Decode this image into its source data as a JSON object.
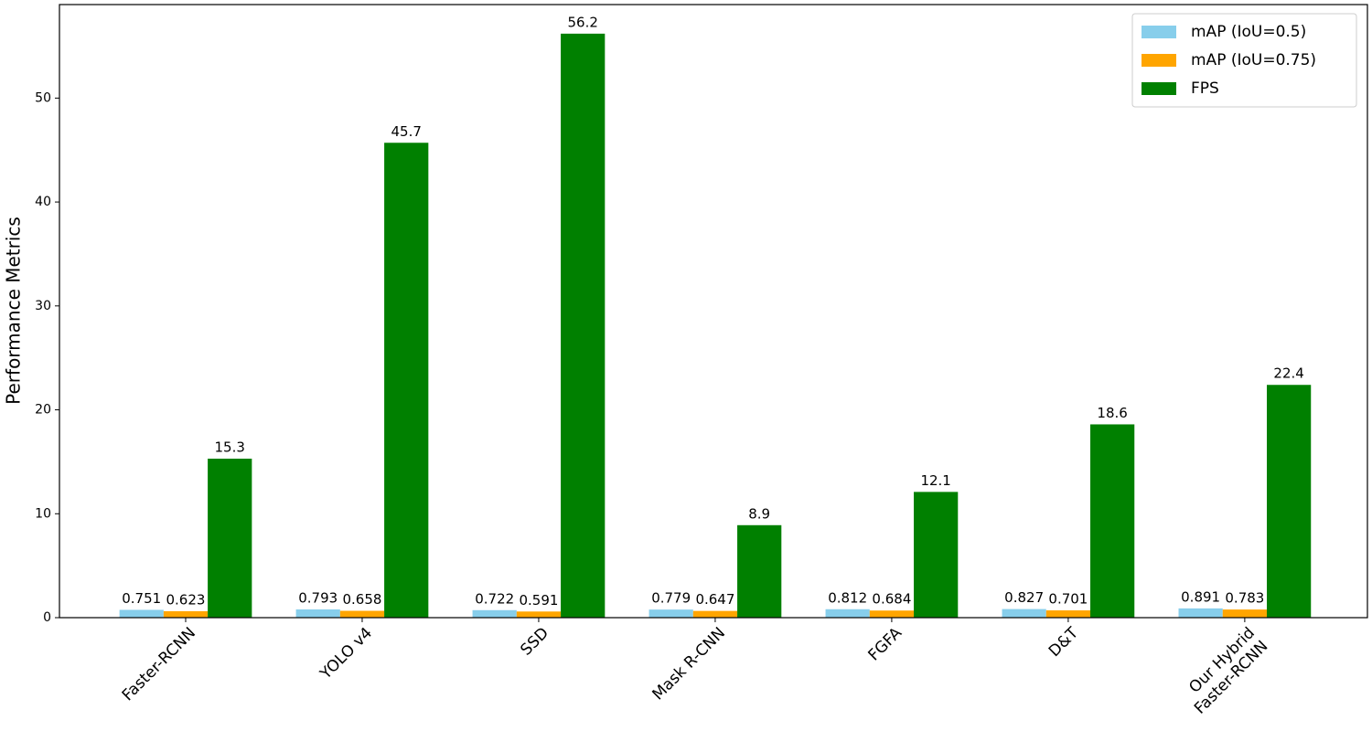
{
  "chart_data": {
    "type": "bar",
    "y_label": "Performance Metrics",
    "categories": [
      "Faster-RCNN",
      "YOLO v4",
      "SSD",
      "Mask R-CNN",
      "FGFA",
      "D&T",
      "Our Hybrid\nFaster-RCNN"
    ],
    "series": [
      {
        "name": "mAP (IoU=0.5)",
        "color": "#87ceeb",
        "values": [
          0.751,
          0.793,
          0.722,
          0.779,
          0.812,
          0.827,
          0.891
        ]
      },
      {
        "name": "mAP (IoU=0.75)",
        "color": "#ffa500",
        "values": [
          0.623,
          0.658,
          0.591,
          0.647,
          0.684,
          0.701,
          0.783
        ]
      },
      {
        "name": "FPS",
        "color": "#008000",
        "values": [
          15.3,
          45.7,
          56.2,
          8.9,
          12.1,
          18.6,
          22.4
        ]
      }
    ],
    "ylim": [
      0,
      59.0
    ],
    "yticks": [
      0,
      10,
      20,
      30,
      40,
      50
    ],
    "grid": false,
    "legend": "upper right"
  }
}
